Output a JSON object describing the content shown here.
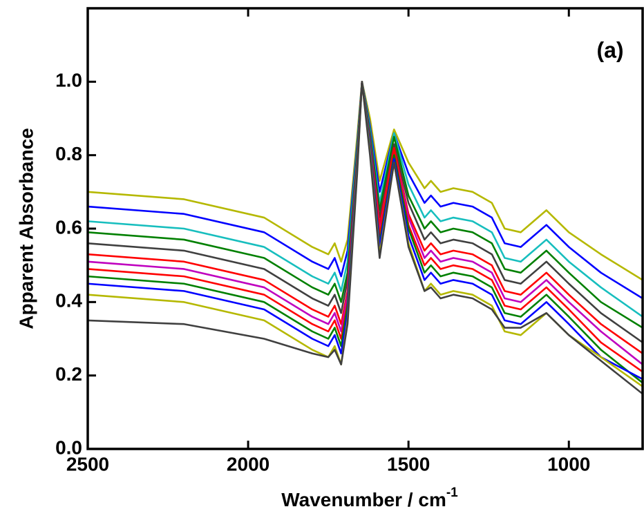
{
  "chart_data": {
    "type": "line",
    "annotation": "(a)",
    "x_label": "Wavenumber / cm",
    "x_label_superscript": "-1",
    "y_label": "Apparent Absorbance",
    "xlim": [
      2500,
      770
    ],
    "xticks": [
      2500,
      2000,
      1500,
      1000
    ],
    "ylim": [
      0,
      1.2
    ],
    "yticks": [
      {
        "value": 0,
        "label": "0.0"
      },
      0.2,
      0.4,
      0.6,
      0.8,
      {
        "value": 1,
        "label": "1.0"
      }
    ],
    "grid": false,
    "x": [
      2500,
      2200,
      1950,
      1800,
      1750,
      1730,
      1710,
      1690,
      1660,
      1645,
      1620,
      1590,
      1545,
      1500,
      1450,
      1430,
      1400,
      1360,
      1300,
      1240,
      1200,
      1150,
      1070,
      1000,
      900,
      770
    ],
    "series": [
      {
        "color": "#b5b800",
        "values": [
          0.7,
          0.68,
          0.63,
          0.55,
          0.53,
          0.56,
          0.51,
          0.57,
          0.85,
          1.0,
          0.9,
          0.73,
          0.87,
          0.78,
          0.71,
          0.73,
          0.7,
          0.71,
          0.7,
          0.67,
          0.6,
          0.59,
          0.65,
          0.59,
          0.53,
          0.46
        ]
      },
      {
        "color": "#0000ff",
        "values": [
          0.66,
          0.64,
          0.59,
          0.51,
          0.49,
          0.52,
          0.47,
          0.54,
          0.83,
          1.0,
          0.88,
          0.7,
          0.86,
          0.75,
          0.67,
          0.69,
          0.66,
          0.67,
          0.66,
          0.63,
          0.56,
          0.55,
          0.61,
          0.55,
          0.48,
          0.41
        ]
      },
      {
        "color": "#17bebe",
        "values": [
          0.62,
          0.6,
          0.55,
          0.47,
          0.45,
          0.48,
          0.43,
          0.51,
          0.82,
          1.0,
          0.87,
          0.67,
          0.86,
          0.72,
          0.63,
          0.65,
          0.62,
          0.63,
          0.62,
          0.59,
          0.52,
          0.51,
          0.57,
          0.51,
          0.44,
          0.36
        ]
      },
      {
        "color": "#008000",
        "values": [
          0.59,
          0.57,
          0.52,
          0.44,
          0.42,
          0.45,
          0.4,
          0.48,
          0.81,
          1.0,
          0.86,
          0.65,
          0.85,
          0.69,
          0.6,
          0.62,
          0.59,
          0.6,
          0.59,
          0.56,
          0.49,
          0.48,
          0.54,
          0.48,
          0.4,
          0.33
        ]
      },
      {
        "color": "#404040",
        "values": [
          0.56,
          0.54,
          0.49,
          0.41,
          0.39,
          0.42,
          0.37,
          0.46,
          0.8,
          1.0,
          0.85,
          0.63,
          0.83,
          0.67,
          0.57,
          0.59,
          0.56,
          0.57,
          0.56,
          0.53,
          0.46,
          0.45,
          0.51,
          0.45,
          0.37,
          0.29
        ]
      },
      {
        "color": "#ff0000",
        "values": [
          0.53,
          0.51,
          0.46,
          0.38,
          0.36,
          0.39,
          0.34,
          0.43,
          0.79,
          1.0,
          0.84,
          0.61,
          0.82,
          0.64,
          0.54,
          0.56,
          0.53,
          0.54,
          0.53,
          0.5,
          0.43,
          0.42,
          0.48,
          0.42,
          0.34,
          0.26
        ]
      },
      {
        "color": "#bf00bf",
        "values": [
          0.51,
          0.49,
          0.44,
          0.36,
          0.34,
          0.37,
          0.32,
          0.42,
          0.79,
          1.0,
          0.84,
          0.59,
          0.81,
          0.63,
          0.52,
          0.54,
          0.51,
          0.52,
          0.51,
          0.48,
          0.41,
          0.4,
          0.46,
          0.4,
          0.32,
          0.23
        ]
      },
      {
        "color": "#ff0000",
        "values": [
          0.49,
          0.47,
          0.42,
          0.34,
          0.32,
          0.35,
          0.3,
          0.4,
          0.78,
          1.0,
          0.83,
          0.58,
          0.81,
          0.61,
          0.5,
          0.52,
          0.49,
          0.5,
          0.49,
          0.46,
          0.39,
          0.38,
          0.44,
          0.38,
          0.29,
          0.21
        ]
      },
      {
        "color": "#008000",
        "values": [
          0.47,
          0.45,
          0.4,
          0.32,
          0.3,
          0.33,
          0.28,
          0.39,
          0.78,
          1.0,
          0.83,
          0.56,
          0.8,
          0.6,
          0.48,
          0.5,
          0.47,
          0.48,
          0.47,
          0.44,
          0.37,
          0.36,
          0.42,
          0.36,
          0.27,
          0.18
        ]
      },
      {
        "color": "#0000ff",
        "values": [
          0.45,
          0.43,
          0.38,
          0.3,
          0.28,
          0.31,
          0.26,
          0.37,
          0.77,
          1.0,
          0.82,
          0.55,
          0.79,
          0.58,
          0.46,
          0.48,
          0.45,
          0.46,
          0.45,
          0.42,
          0.35,
          0.34,
          0.4,
          0.34,
          0.25,
          0.19
        ]
      },
      {
        "color": "#b5b800",
        "values": [
          0.42,
          0.4,
          0.35,
          0.27,
          0.25,
          0.28,
          0.23,
          0.35,
          0.76,
          1.0,
          0.81,
          0.53,
          0.78,
          0.56,
          0.43,
          0.45,
          0.42,
          0.43,
          0.42,
          0.39,
          0.32,
          0.31,
          0.37,
          0.31,
          0.25,
          0.17
        ]
      },
      {
        "color": "#404040",
        "values": [
          0.35,
          0.34,
          0.3,
          0.26,
          0.25,
          0.27,
          0.23,
          0.34,
          0.75,
          1.0,
          0.8,
          0.52,
          0.78,
          0.55,
          0.43,
          0.44,
          0.41,
          0.42,
          0.41,
          0.38,
          0.33,
          0.33,
          0.37,
          0.31,
          0.24,
          0.15
        ]
      }
    ]
  }
}
